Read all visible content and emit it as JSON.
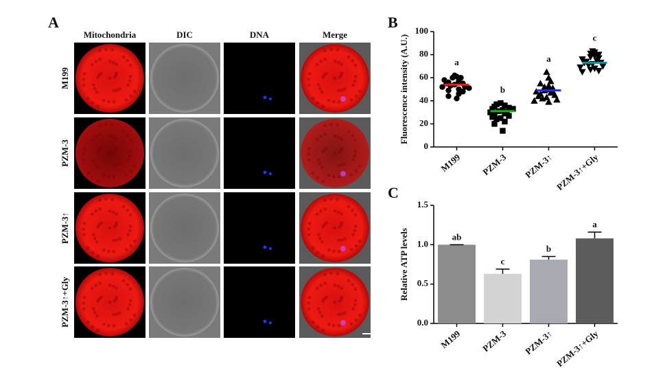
{
  "panel_a": {
    "label": "A",
    "columns": [
      "Mitochondria",
      "DIC",
      "DNA",
      "Merge"
    ],
    "rows": [
      "M199",
      "PZM-3",
      "PZM-3↑",
      "PZM-3↑+Gly"
    ]
  },
  "chart_data": [
    {
      "type": "dotplot",
      "label": "B",
      "y_label": "Fluorescence intensity (A.U.)",
      "categories": [
        "M199",
        "PZM-3",
        "PZM-3↑",
        "PZM-3↑+Gly"
      ],
      "groups": [
        {
          "marker": "circle",
          "mean_color": "#e8201c",
          "mean": 54,
          "letter": "a",
          "values": [
            62,
            61,
            60,
            60,
            58,
            57,
            56,
            55,
            55,
            54,
            53,
            52,
            52,
            51,
            50,
            49,
            48,
            46,
            44,
            42
          ]
        },
        {
          "marker": "square",
          "mean_color": "#1fae1f",
          "mean": 31,
          "letter": "b",
          "values": [
            38,
            37,
            36,
            35,
            34,
            33,
            33,
            32,
            31,
            30,
            30,
            29,
            28,
            27,
            26,
            25,
            24,
            22,
            20,
            14
          ]
        },
        {
          "marker": "triangle",
          "mean_color": "#2a2ae0",
          "mean": 49,
          "letter": "a",
          "values": [
            65,
            60,
            57,
            55,
            53,
            52,
            51,
            50,
            49,
            48,
            48,
            47,
            46,
            45,
            44,
            43,
            42,
            41,
            40,
            39
          ]
        },
        {
          "marker": "triangle-down",
          "mean_color": "#1c8a9c",
          "mean": 73,
          "letter": "c",
          "values": [
            83,
            82,
            81,
            80,
            79,
            78,
            77,
            76,
            75,
            74,
            73,
            73,
            72,
            71,
            70,
            69,
            68,
            67,
            66,
            65
          ]
        }
      ],
      "ylim": [
        0,
        100
      ],
      "yticks": [
        0,
        20,
        40,
        60,
        80,
        100
      ]
    },
    {
      "type": "bar",
      "label": "C",
      "y_label": "Relative ATP levels",
      "categories": [
        "M199",
        "PZM-3",
        "PZM-3↑",
        "PZM-3↑+Gly"
      ],
      "values": [
        1.0,
        0.63,
        0.81,
        1.08
      ],
      "errors": [
        0,
        0.06,
        0.04,
        0.08
      ],
      "letters": [
        "ab",
        "c",
        "b",
        "a"
      ],
      "colors": [
        "#8c8c8c",
        "#d3d3d3",
        "#a9a9b2",
        "#5c5c5c"
      ],
      "ylim": [
        0,
        1.5
      ],
      "yticks": [
        {
          "value": 0,
          "label": "0.0"
        },
        {
          "value": 0.5,
          "label": "0.5"
        },
        {
          "value": 1,
          "label": "1.0"
        },
        {
          "value": 1.5,
          "label": "1.5"
        }
      ]
    }
  ]
}
